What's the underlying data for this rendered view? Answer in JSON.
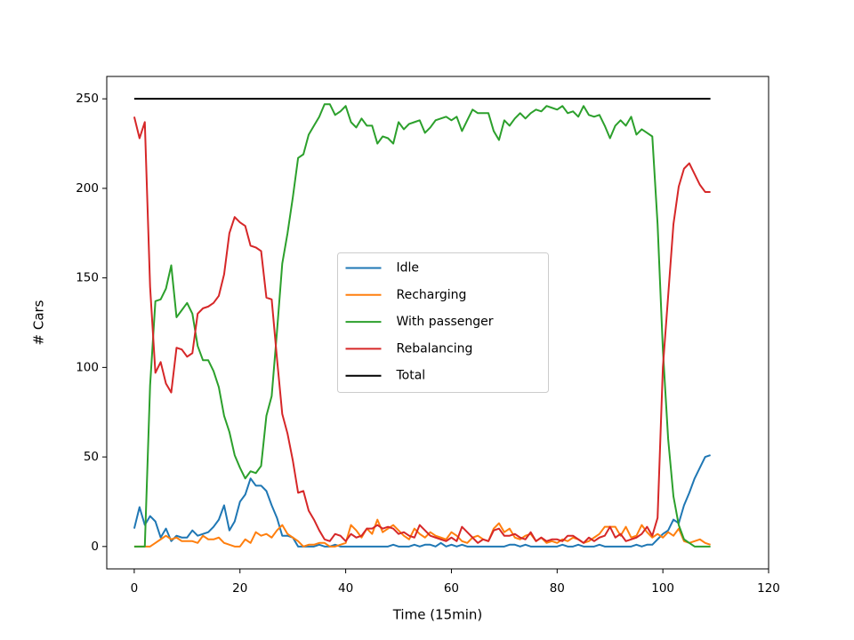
{
  "chart_data": {
    "type": "line",
    "xlabel": "Time (15min)",
    "ylabel": "# Cars",
    "x": [
      0,
      1,
      2,
      3,
      4,
      5,
      6,
      7,
      8,
      9,
      10,
      11,
      12,
      13,
      14,
      15,
      16,
      17,
      18,
      19,
      20,
      21,
      22,
      23,
      24,
      25,
      26,
      27,
      28,
      29,
      30,
      31,
      32,
      33,
      34,
      35,
      36,
      37,
      38,
      39,
      40,
      41,
      42,
      43,
      44,
      45,
      46,
      47,
      48,
      49,
      50,
      51,
      52,
      53,
      54,
      55,
      56,
      57,
      58,
      59,
      60,
      61,
      62,
      63,
      64,
      65,
      66,
      67,
      68,
      69,
      70,
      71,
      72,
      73,
      74,
      75,
      76,
      77,
      78,
      79,
      80,
      81,
      82,
      83,
      84,
      85,
      86,
      87,
      88,
      89,
      90,
      91,
      92,
      93,
      94,
      95,
      96,
      97,
      98,
      99,
      100,
      101,
      102,
      103,
      104,
      105,
      106,
      107,
      108,
      109
    ],
    "series": [
      {
        "name": "Idle",
        "color": "#1f77b4",
        "values": [
          10,
          22,
          12,
          17,
          14,
          5,
          10,
          3,
          6,
          5,
          5,
          9,
          6,
          7,
          8,
          11,
          15,
          23,
          9,
          14,
          25,
          29,
          38,
          34,
          34,
          31,
          23,
          16,
          6,
          6,
          5,
          0,
          0,
          0,
          0,
          1,
          0,
          0,
          1,
          0,
          0,
          0,
          0,
          0,
          0,
          0,
          0,
          0,
          0,
          1,
          0,
          0,
          0,
          1,
          0,
          1,
          1,
          0,
          2,
          0,
          1,
          0,
          1,
          0,
          0,
          0,
          0,
          0,
          0,
          0,
          0,
          1,
          1,
          0,
          1,
          0,
          0,
          0,
          0,
          0,
          0,
          1,
          0,
          0,
          1,
          0,
          0,
          0,
          1,
          0,
          0,
          0,
          0,
          0,
          0,
          1,
          0,
          1,
          1,
          4,
          7,
          9,
          15,
          13,
          23,
          30,
          38,
          44,
          50,
          51
        ]
      },
      {
        "name": "Recharging",
        "color": "#ff7f0e",
        "values": [
          0,
          0,
          0,
          0,
          2,
          4,
          6,
          4,
          5,
          3,
          3,
          3,
          2,
          6,
          4,
          4,
          5,
          2,
          1,
          0,
          0,
          4,
          2,
          8,
          6,
          7,
          5,
          9,
          12,
          7,
          5,
          3,
          0,
          1,
          1,
          2,
          2,
          0,
          0,
          1,
          2,
          12,
          9,
          5,
          10,
          7,
          15,
          8,
          10,
          12,
          9,
          6,
          4,
          10,
          7,
          5,
          8,
          6,
          5,
          4,
          8,
          6,
          3,
          2,
          5,
          6,
          4,
          3,
          10,
          13,
          8,
          10,
          5,
          4,
          6,
          7,
          3,
          5,
          2,
          3,
          2,
          4,
          3,
          5,
          4,
          2,
          3,
          5,
          7,
          11,
          11,
          11,
          6,
          11,
          5,
          6,
          12,
          8,
          5,
          7,
          5,
          8,
          6,
          10,
          3,
          2,
          3,
          4,
          2,
          1
        ]
      },
      {
        "name": "With passenger",
        "color": "#2ca02c",
        "values": [
          0,
          0,
          0,
          90,
          137,
          138,
          144,
          157,
          128,
          132,
          136,
          130,
          112,
          104,
          104,
          98,
          89,
          73,
          64,
          51,
          44,
          38,
          42,
          41,
          45,
          73,
          84,
          120,
          158,
          175,
          195,
          217,
          219,
          230,
          235,
          240,
          247,
          247,
          241,
          243,
          246,
          237,
          234,
          239,
          235,
          235,
          225,
          229,
          228,
          225,
          237,
          233,
          236,
          237,
          238,
          231,
          234,
          238,
          239,
          240,
          238,
          240,
          232,
          238,
          244,
          242,
          242,
          242,
          232,
          227,
          238,
          235,
          239,
          242,
          239,
          242,
          244,
          243,
          246,
          245,
          244,
          246,
          242,
          243,
          240,
          246,
          241,
          240,
          241,
          235,
          228,
          235,
          238,
          235,
          240,
          230,
          233,
          231,
          229,
          180,
          110,
          60,
          28,
          12,
          4,
          2,
          0,
          0,
          0,
          0
        ]
      },
      {
        "name": "Rebalancing",
        "color": "#d62728",
        "values": [
          240,
          228,
          237,
          145,
          97,
          103,
          91,
          86,
          111,
          110,
          106,
          108,
          130,
          133,
          134,
          136,
          140,
          152,
          175,
          184,
          181,
          179,
          168,
          167,
          165,
          139,
          138,
          105,
          74,
          63,
          48,
          30,
          31,
          20,
          15,
          9,
          4,
          3,
          7,
          6,
          3,
          7,
          5,
          6,
          10,
          10,
          12,
          10,
          11,
          10,
          7,
          8,
          6,
          5,
          12,
          9,
          6,
          5,
          4,
          3,
          5,
          3,
          11,
          8,
          5,
          2,
          4,
          3,
          9,
          10,
          6,
          6,
          7,
          5,
          4,
          8,
          3,
          5,
          3,
          4,
          4,
          3,
          6,
          6,
          4,
          2,
          5,
          3,
          5,
          6,
          11,
          5,
          7,
          3,
          4,
          5,
          7,
          11,
          6,
          16,
          100,
          140,
          180,
          201,
          211,
          214,
          208,
          202,
          198,
          198
        ]
      },
      {
        "name": "Total",
        "color": "#000000",
        "values": [
          250,
          250,
          250,
          250,
          250,
          250,
          250,
          250,
          250,
          250,
          250,
          250,
          250,
          250,
          250,
          250,
          250,
          250,
          250,
          250,
          250,
          250,
          250,
          250,
          250,
          250,
          250,
          250,
          250,
          250,
          250,
          250,
          250,
          250,
          250,
          250,
          250,
          250,
          250,
          250,
          250,
          250,
          250,
          250,
          250,
          250,
          250,
          250,
          250,
          250,
          250,
          250,
          250,
          250,
          250,
          250,
          250,
          250,
          250,
          250,
          250,
          250,
          250,
          250,
          250,
          250,
          250,
          250,
          250,
          250,
          250,
          250,
          250,
          250,
          250,
          250,
          250,
          250,
          250,
          250,
          250,
          250,
          250,
          250,
          250,
          250,
          250,
          250,
          250,
          250,
          250,
          250,
          250,
          250,
          250,
          250,
          250,
          250,
          250,
          250,
          250,
          250,
          250,
          250,
          250,
          250,
          250,
          250,
          250,
          250
        ]
      }
    ],
    "xlim": [
      -5.2,
      120
    ],
    "xticks": [
      0,
      20,
      40,
      60,
      80,
      100,
      120
    ],
    "ylim": [
      -12.5,
      262.5
    ],
    "yticks": [
      0,
      50,
      100,
      150,
      200,
      250
    ],
    "legend": "center"
  }
}
